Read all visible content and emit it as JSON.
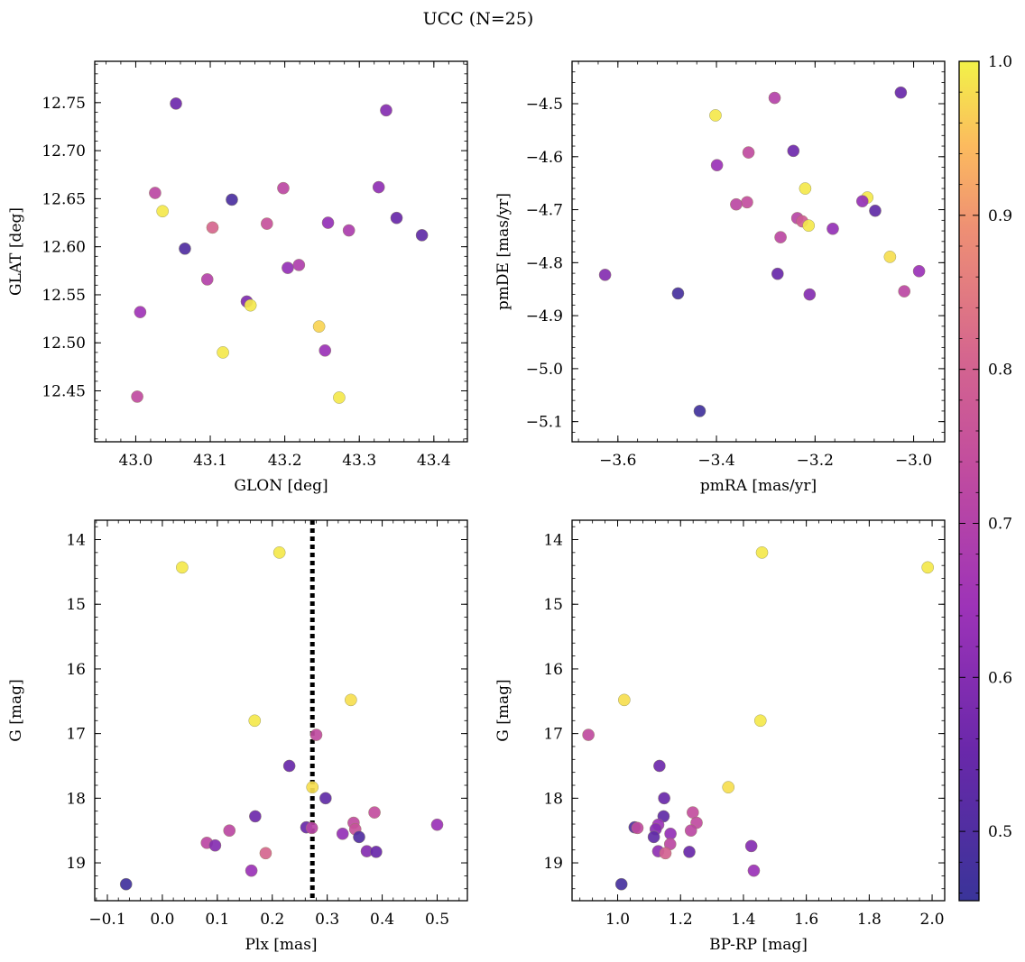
{
  "suptitle": "UCC (N=25)",
  "colorbar": {
    "range": [
      0.455,
      1.0
    ],
    "ticks": [
      0.5,
      0.6,
      0.7,
      0.8,
      0.9,
      1.0
    ],
    "tick_labels": [
      "0.5",
      "0.6",
      "0.7",
      "0.8",
      "0.9",
      "1.0"
    ],
    "colormap": "plasma",
    "colors": {
      "low": "#3a3499",
      "mid": "#9d33b8",
      "midhigh": "#d5668e",
      "high": "#fcaa61",
      "top": "#f2f248"
    }
  },
  "chart_data": [
    {
      "type": "scatter",
      "title": "",
      "xlabel": "GLON [deg]",
      "ylabel": "GLAT [deg]",
      "xlim": [
        42.945,
        43.445
      ],
      "ylim": [
        12.397,
        12.793
      ],
      "xticks": [
        43.0,
        43.1,
        43.2,
        43.3,
        43.4
      ],
      "xtick_labels": [
        "43.0",
        "43.1",
        "43.2",
        "43.3",
        "43.4"
      ],
      "yticks": [
        12.45,
        12.5,
        12.55,
        12.6,
        12.65,
        12.7,
        12.75
      ],
      "ytick_labels": [
        "12.45",
        "12.50",
        "12.55",
        "12.60",
        "12.65",
        "12.70",
        "12.75"
      ],
      "points": [
        {
          "x": 43.054,
          "y": 12.749,
          "c": 0.56
        },
        {
          "x": 43.336,
          "y": 12.742,
          "c": 0.6
        },
        {
          "x": 43.326,
          "y": 12.662,
          "c": 0.62
        },
        {
          "x": 43.198,
          "y": 12.661,
          "c": 0.72
        },
        {
          "x": 43.026,
          "y": 12.656,
          "c": 0.72
        },
        {
          "x": 43.129,
          "y": 12.649,
          "c": 0.49
        },
        {
          "x": 43.036,
          "y": 12.637,
          "c": 0.99
        },
        {
          "x": 43.35,
          "y": 12.63,
          "c": 0.55
        },
        {
          "x": 43.258,
          "y": 12.625,
          "c": 0.63
        },
        {
          "x": 43.176,
          "y": 12.624,
          "c": 0.75
        },
        {
          "x": 43.103,
          "y": 12.62,
          "c": 0.81
        },
        {
          "x": 43.286,
          "y": 12.617,
          "c": 0.68
        },
        {
          "x": 43.384,
          "y": 12.612,
          "c": 0.53
        },
        {
          "x": 43.066,
          "y": 12.598,
          "c": 0.5
        },
        {
          "x": 43.219,
          "y": 12.581,
          "c": 0.69
        },
        {
          "x": 43.204,
          "y": 12.578,
          "c": 0.63
        },
        {
          "x": 43.096,
          "y": 12.566,
          "c": 0.7
        },
        {
          "x": 43.149,
          "y": 12.543,
          "c": 0.59
        },
        {
          "x": 43.154,
          "y": 12.539,
          "c": 0.99
        },
        {
          "x": 43.006,
          "y": 12.532,
          "c": 0.65
        },
        {
          "x": 43.246,
          "y": 12.517,
          "c": 0.97
        },
        {
          "x": 43.254,
          "y": 12.492,
          "c": 0.64
        },
        {
          "x": 43.117,
          "y": 12.49,
          "c": 0.99
        },
        {
          "x": 43.002,
          "y": 12.444,
          "c": 0.73
        },
        {
          "x": 43.273,
          "y": 12.443,
          "c": 0.99
        }
      ]
    },
    {
      "type": "scatter",
      "title": "",
      "xlabel": "pmRA [mas/yr]",
      "ylabel": "pmDE [mas/yr]",
      "xlim": [
        -3.693,
        -2.937
      ],
      "ylim": [
        -5.138,
        -4.42
      ],
      "xticks": [
        -3.6,
        -3.4,
        -3.2,
        -3.0
      ],
      "xtick_labels": [
        "−3.6",
        "−3.4",
        "−3.2",
        "−3.0"
      ],
      "yticks": [
        -5.1,
        -5.0,
        -4.9,
        -4.8,
        -4.7,
        -4.6,
        -4.5
      ],
      "ytick_labels": [
        "−5.1",
        "−5.0",
        "−4.9",
        "−4.8",
        "−4.7",
        "−4.6",
        "−4.5"
      ],
      "points": [
        {
          "x": -3.026,
          "y": -4.479,
          "c": 0.55
        },
        {
          "x": -3.282,
          "y": -4.489,
          "c": 0.7
        },
        {
          "x": -3.402,
          "y": -4.522,
          "c": 0.99
        },
        {
          "x": -3.244,
          "y": -4.589,
          "c": 0.56
        },
        {
          "x": -3.335,
          "y": -4.592,
          "c": 0.73
        },
        {
          "x": -3.399,
          "y": -4.616,
          "c": 0.64
        },
        {
          "x": -3.22,
          "y": -4.66,
          "c": 0.99
        },
        {
          "x": -3.094,
          "y": -4.677,
          "c": 0.99
        },
        {
          "x": -3.104,
          "y": -4.684,
          "c": 0.63
        },
        {
          "x": -3.338,
          "y": -4.686,
          "c": 0.74
        },
        {
          "x": -3.36,
          "y": -4.69,
          "c": 0.72
        },
        {
          "x": -3.078,
          "y": -4.702,
          "c": 0.53
        },
        {
          "x": -3.236,
          "y": -4.716,
          "c": 0.71
        },
        {
          "x": -3.226,
          "y": -4.722,
          "c": 0.78
        },
        {
          "x": -3.213,
          "y": -4.73,
          "c": 0.99
        },
        {
          "x": -3.164,
          "y": -4.736,
          "c": 0.63
        },
        {
          "x": -3.27,
          "y": -4.752,
          "c": 0.72
        },
        {
          "x": -3.048,
          "y": -4.789,
          "c": 0.98
        },
        {
          "x": -2.989,
          "y": -4.816,
          "c": 0.64
        },
        {
          "x": -3.276,
          "y": -4.821,
          "c": 0.55
        },
        {
          "x": -3.626,
          "y": -4.823,
          "c": 0.6
        },
        {
          "x": -3.019,
          "y": -4.854,
          "c": 0.72
        },
        {
          "x": -3.478,
          "y": -4.858,
          "c": 0.48
        },
        {
          "x": -3.211,
          "y": -4.86,
          "c": 0.6
        },
        {
          "x": -3.434,
          "y": -5.08,
          "c": 0.47
        }
      ]
    },
    {
      "type": "scatter",
      "title": "",
      "xlabel": "Plx [mas]",
      "ylabel": "G [mag]",
      "xlim": [
        -0.123,
        0.555
      ],
      "ylim": [
        19.585,
        13.7
      ],
      "y_inverted": true,
      "xticks": [
        -0.1,
        0.0,
        0.1,
        0.2,
        0.3,
        0.4,
        0.5
      ],
      "xtick_labels": [
        "−0.1",
        "0.0",
        "0.1",
        "0.2",
        "0.3",
        "0.4",
        "0.5"
      ],
      "yticks": [
        14,
        15,
        16,
        17,
        18,
        19
      ],
      "ytick_labels": [
        "14",
        "15",
        "16",
        "17",
        "18",
        "19"
      ],
      "vline": {
        "x": 0.273,
        "style": "dotted",
        "color": "#000000"
      },
      "points": [
        {
          "x": 0.213,
          "y": 14.2,
          "c": 0.99
        },
        {
          "x": 0.036,
          "y": 14.43,
          "c": 0.99
        },
        {
          "x": 0.343,
          "y": 16.48,
          "c": 0.98
        },
        {
          "x": 0.168,
          "y": 16.8,
          "c": 0.99
        },
        {
          "x": 0.28,
          "y": 17.02,
          "c": 0.73
        },
        {
          "x": 0.231,
          "y": 17.5,
          "c": 0.55
        },
        {
          "x": 0.273,
          "y": 17.83,
          "c": 0.98
        },
        {
          "x": 0.297,
          "y": 18.0,
          "c": 0.53
        },
        {
          "x": 0.386,
          "y": 18.22,
          "c": 0.74
        },
        {
          "x": 0.169,
          "y": 18.28,
          "c": 0.56
        },
        {
          "x": 0.5,
          "y": 18.41,
          "c": 0.64
        },
        {
          "x": 0.348,
          "y": 18.38,
          "c": 0.73
        },
        {
          "x": 0.262,
          "y": 18.45,
          "c": 0.55
        },
        {
          "x": 0.272,
          "y": 18.46,
          "c": 0.71
        },
        {
          "x": 0.351,
          "y": 18.48,
          "c": 0.75
        },
        {
          "x": 0.122,
          "y": 18.5,
          "c": 0.72
        },
        {
          "x": 0.328,
          "y": 18.55,
          "c": 0.63
        },
        {
          "x": 0.358,
          "y": 18.6,
          "c": 0.5
        },
        {
          "x": 0.081,
          "y": 18.69,
          "c": 0.72
        },
        {
          "x": 0.096,
          "y": 18.73,
          "c": 0.6
        },
        {
          "x": 0.372,
          "y": 18.82,
          "c": 0.6
        },
        {
          "x": 0.389,
          "y": 18.83,
          "c": 0.55
        },
        {
          "x": 0.188,
          "y": 18.85,
          "c": 0.81
        },
        {
          "x": 0.162,
          "y": 19.12,
          "c": 0.64
        },
        {
          "x": -0.066,
          "y": 19.33,
          "c": 0.47
        }
      ]
    },
    {
      "type": "scatter",
      "title": "",
      "xlabel": "BP-RP [mag]",
      "ylabel": "G [mag]",
      "xlim": [
        0.855,
        2.04
      ],
      "ylim": [
        19.585,
        13.7
      ],
      "y_inverted": true,
      "xticks": [
        1.0,
        1.2,
        1.4,
        1.6,
        1.8,
        2.0
      ],
      "xtick_labels": [
        "1.0",
        "1.2",
        "1.4",
        "1.6",
        "1.8",
        "2.0"
      ],
      "yticks": [
        14,
        15,
        16,
        17,
        18,
        19
      ],
      "ytick_labels": [
        "14",
        "15",
        "16",
        "17",
        "18",
        "19"
      ],
      "points": [
        {
          "x": 1.459,
          "y": 14.2,
          "c": 0.99
        },
        {
          "x": 1.986,
          "y": 14.43,
          "c": 0.99
        },
        {
          "x": 1.021,
          "y": 16.48,
          "c": 0.98
        },
        {
          "x": 1.454,
          "y": 16.8,
          "c": 0.99
        },
        {
          "x": 0.907,
          "y": 17.02,
          "c": 0.73
        },
        {
          "x": 1.133,
          "y": 17.5,
          "c": 0.56
        },
        {
          "x": 1.352,
          "y": 17.83,
          "c": 0.98
        },
        {
          "x": 1.148,
          "y": 18.0,
          "c": 0.55
        },
        {
          "x": 1.239,
          "y": 18.22,
          "c": 0.74
        },
        {
          "x": 1.146,
          "y": 18.28,
          "c": 0.53
        },
        {
          "x": 1.251,
          "y": 18.38,
          "c": 0.73
        },
        {
          "x": 1.129,
          "y": 18.41,
          "c": 0.64
        },
        {
          "x": 1.054,
          "y": 18.45,
          "c": 0.5
        },
        {
          "x": 1.063,
          "y": 18.46,
          "c": 0.73
        },
        {
          "x": 1.121,
          "y": 18.48,
          "c": 0.6
        },
        {
          "x": 1.233,
          "y": 18.5,
          "c": 0.72
        },
        {
          "x": 1.168,
          "y": 18.55,
          "c": 0.63
        },
        {
          "x": 1.115,
          "y": 18.6,
          "c": 0.53
        },
        {
          "x": 1.167,
          "y": 18.71,
          "c": 0.72
        },
        {
          "x": 1.425,
          "y": 18.74,
          "c": 0.6
        },
        {
          "x": 1.129,
          "y": 18.82,
          "c": 0.62
        },
        {
          "x": 1.228,
          "y": 18.83,
          "c": 0.55
        },
        {
          "x": 1.152,
          "y": 18.85,
          "c": 0.8
        },
        {
          "x": 1.433,
          "y": 19.12,
          "c": 0.64
        },
        {
          "x": 1.012,
          "y": 19.33,
          "c": 0.48
        }
      ]
    }
  ]
}
